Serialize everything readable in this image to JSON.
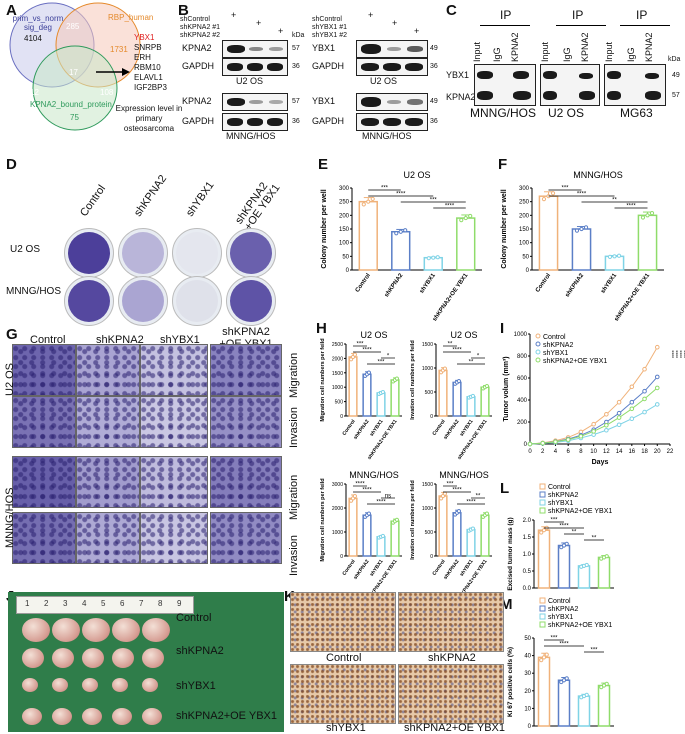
{
  "panels": {
    "A": "A",
    "B": "B",
    "C": "C",
    "D": "D",
    "E": "E",
    "F": "F",
    "G": "G",
    "H": "H",
    "I": "I",
    "J": "J",
    "K": "K",
    "L": "L",
    "M": "M"
  },
  "venn": {
    "set1": "prim_vs_norm sig_deg",
    "set1_count": "4104",
    "set2": "RBP_human",
    "set2_count": "1731",
    "set3": "KPNA2_bound_protein",
    "set3_count": "75",
    "i12": "285",
    "i13": "12",
    "i23": "108",
    "i123": "17",
    "genes": [
      "YBX1",
      "SNRPB",
      "ERH",
      "RBM10",
      "ELAVL1",
      "IGF2BP3"
    ],
    "note": "Expression level in primary osteosarcoma"
  },
  "blotB": {
    "shControl": "shControl",
    "shKPNA2_1": "shKPNA2 #1",
    "shKPNA2_2": "shKPNA2 #2",
    "shYBX1_1": "shYBX1 #1",
    "shYBX1_2": "shYBX1 #2",
    "kpna2": "KPNA2",
    "gapdh": "GAPDH",
    "ybx1": "YBX1",
    "plus": "+",
    "kda": "kDa",
    "k57": "57",
    "k36": "36",
    "k49": "49",
    "u2os": "U2 OS",
    "mnng": "MNNG/HOS"
  },
  "blotC": {
    "ip": "IP",
    "input": "Input",
    "igg": "IgG",
    "kpna2": "KPNA2",
    "ybx1": "YBX1",
    "kda": "kDa",
    "k49": "49",
    "k57": "57",
    "cells": [
      "MNNG/HOS",
      "U2 OS",
      "MG63"
    ]
  },
  "panelD": {
    "cols": [
      "Control",
      "shKPNA2",
      "shYBX1",
      "shKPNA2 +OE YBX1"
    ],
    "rows": [
      "U2 OS",
      "MNNG/HOS"
    ]
  },
  "chartE": {
    "title": "U2 OS",
    "ylabel": "Colony number per well",
    "yticks": [
      "0",
      "50",
      "100",
      "150",
      "200",
      "250",
      "300"
    ],
    "cats": [
      "Control",
      "shKPNA2",
      "shYBX1",
      "shKPNA2+OE YBX1"
    ],
    "sig": [
      "***",
      "****",
      "***",
      "****"
    ]
  },
  "chartF": {
    "title": "MNNG/HOS",
    "ylabel": "Colony number per well",
    "yticks": [
      "0",
      "50",
      "100",
      "150",
      "200",
      "250",
      "300"
    ],
    "cats": [
      "Control",
      "shKPNA2",
      "shYBX1",
      "shKPNA2+OE YBX1"
    ],
    "sig": [
      "***",
      "****",
      "**",
      "****"
    ]
  },
  "panelG": {
    "cols": [
      "Control",
      "shKPNA2",
      "shYBX1",
      "shKPNA2 +OE YBX1"
    ],
    "rows": [
      "U2 OS",
      "MNNG/HOS"
    ],
    "assays": [
      "Migration",
      "Invasion",
      "Migration",
      "Invasion"
    ]
  },
  "chartH": {
    "u2os": "U2 OS",
    "mnng": "MNNG/HOS",
    "mig_label": "Migration cell numbers per feild",
    "inv_label": "Invation cell numbers per feild",
    "ticks_mig_u2": [
      "0",
      "500",
      "1000",
      "1500",
      "2000",
      "2500"
    ],
    "ticks_inv_u2": [
      "0",
      "500",
      "1000",
      "1500"
    ],
    "ticks_mig_mn": [
      "0",
      "1000",
      "2000",
      "3000"
    ],
    "ticks_inv_mn": [
      "0",
      "500",
      "1000",
      "1500"
    ],
    "cats": [
      "Control",
      "shKPNA2",
      "shYBX1",
      "shKPNA2+OE YBX1"
    ],
    "sig_a": [
      "***",
      "****",
      "*",
      "***"
    ],
    "sig_b": [
      "**",
      "****",
      "*",
      "**"
    ],
    "sig_c": [
      "****",
      "****",
      "ns",
      "****"
    ],
    "sig_d": [
      "***",
      "****",
      "**",
      "****"
    ]
  },
  "chartI": {
    "ylabel": "Tumor volum (mm³)",
    "xlabel": "Days",
    "yticks": [
      "0",
      "200",
      "400",
      "600",
      "800",
      "1000"
    ],
    "xticks": [
      "0",
      "2",
      "4",
      "6",
      "8",
      "10",
      "12",
      "14",
      "16",
      "18",
      "20",
      "22"
    ],
    "legend": [
      "Control",
      "shKPNA2",
      "shYBX1",
      "shKPNA2+OE YBX1"
    ],
    "sig": [
      "****",
      "****",
      "****",
      "****"
    ]
  },
  "panelJ": {
    "rows": [
      "Control",
      "shKPNA2",
      "shYBX1",
      "shKPNA2+OE YBX1"
    ],
    "ruler": [
      "1",
      "2",
      "3",
      "4",
      "5",
      "6",
      "7",
      "8",
      "9"
    ]
  },
  "panelK": {
    "labels": [
      "Control",
      "shKPNA2",
      "shYBX1",
      "shKPNA2+OE YBX1"
    ]
  },
  "chartL": {
    "ylabel": "Excised tumor mass (g)",
    "yticks": [
      "0.0",
      "0.5",
      "1.0",
      "1.5",
      "2.0"
    ],
    "legend": [
      "Control",
      "shKPNA2",
      "shYBX1",
      "shKPNA2+OE YBX1"
    ],
    "sig": [
      "***",
      "****",
      "**",
      "**"
    ]
  },
  "chartM": {
    "ylabel": "Ki 67 positive cells (%)",
    "yticks": [
      "0",
      "10",
      "20",
      "30",
      "40",
      "50"
    ],
    "legend": [
      "Control",
      "shKPNA2",
      "shYBX1",
      "shKPNA2+OE YBX1"
    ],
    "sig": [
      "***",
      "****",
      "***"
    ]
  },
  "colors": {
    "control": "#f0b27a",
    "shkpna2": "#5b7fc7",
    "shybx1": "#7fd3e6",
    "oe": "#8fdc6a",
    "venn1": "#6a6fc1",
    "venn2": "#e58a2c",
    "venn3": "#2f9a5c",
    "ybx1": "#e02020"
  },
  "chart_data": [
    {
      "type": "bar",
      "title": "U2 OS",
      "ylabel": "Colony number per well",
      "categories": [
        "Control",
        "shKPNA2",
        "shYBX1",
        "shKPNA2+OE YBX1"
      ],
      "values": [
        250,
        140,
        45,
        190
      ],
      "ylim": [
        0,
        300
      ]
    },
    {
      "type": "bar",
      "title": "MNNG/HOS",
      "ylabel": "Colony number per well",
      "categories": [
        "Control",
        "shKPNA2",
        "shYBX1",
        "shKPNA2+OE YBX1"
      ],
      "values": [
        270,
        150,
        50,
        200
      ],
      "ylim": [
        0,
        300
      ]
    },
    {
      "type": "bar",
      "title": "U2 OS",
      "ylabel": "Migration cell numbers per feild",
      "categories": [
        "Control",
        "shKPNA2",
        "shYBX1",
        "shKPNA2+OE YBX1"
      ],
      "values": [
        2050,
        1450,
        800,
        1250
      ],
      "ylim": [
        0,
        2500
      ]
    },
    {
      "type": "bar",
      "title": "U2 OS",
      "ylabel": "Invation cell numbers per feild",
      "categories": [
        "Control",
        "shKPNA2",
        "shYBX1",
        "shKPNA2+OE YBX1"
      ],
      "values": [
        950,
        700,
        400,
        600
      ],
      "ylim": [
        0,
        1500
      ]
    },
    {
      "type": "bar",
      "title": "MNNG/HOS",
      "ylabel": "Migration cell numbers per feild",
      "categories": [
        "Control",
        "shKPNA2",
        "shYBX1",
        "shKPNA2+OE YBX1"
      ],
      "values": [
        2400,
        1700,
        800,
        1450
      ],
      "ylim": [
        0,
        3000
      ]
    },
    {
      "type": "bar",
      "title": "MNNG/HOS",
      "ylabel": "Invation cell numbers per feild",
      "categories": [
        "Control",
        "shKPNA2",
        "shYBX1",
        "shKPNA2+OE YBX1"
      ],
      "values": [
        1250,
        900,
        550,
        850
      ],
      "ylim": [
        0,
        1500
      ]
    },
    {
      "type": "line",
      "ylabel": "Tumor volum (mm³)",
      "xlabel": "Days",
      "x": [
        0,
        2,
        4,
        6,
        8,
        10,
        12,
        14,
        16,
        18,
        20
      ],
      "ylim": [
        0,
        1000
      ],
      "series": [
        {
          "name": "Control",
          "values": [
            0,
            10,
            30,
            60,
            110,
            180,
            270,
            380,
            520,
            680,
            880
          ]
        },
        {
          "name": "shKPNA2",
          "values": [
            0,
            8,
            22,
            45,
            80,
            130,
            200,
            280,
            380,
            480,
            610
          ]
        },
        {
          "name": "shYBX1",
          "values": [
            0,
            5,
            15,
            30,
            55,
            85,
            125,
            175,
            230,
            290,
            360
          ]
        },
        {
          "name": "shKPNA2+OE YBX1",
          "values": [
            0,
            7,
            20,
            40,
            70,
            115,
            170,
            240,
            320,
            410,
            510
          ]
        }
      ]
    },
    {
      "type": "bar",
      "ylabel": "Excised tumor mass (g)",
      "categories": [
        "Control",
        "shKPNA2",
        "shYBX1",
        "shKPNA2+OE YBX1"
      ],
      "values": [
        1.7,
        1.25,
        0.65,
        0.9
      ],
      "ylim": [
        0,
        2.0
      ]
    },
    {
      "type": "bar",
      "ylabel": "Ki 67 positive cells (%)",
      "categories": [
        "Control",
        "shKPNA2",
        "shYBX1",
        "shKPNA2+OE YBX1"
      ],
      "values": [
        39,
        26,
        17,
        23
      ],
      "ylim": [
        0,
        50
      ]
    }
  ]
}
